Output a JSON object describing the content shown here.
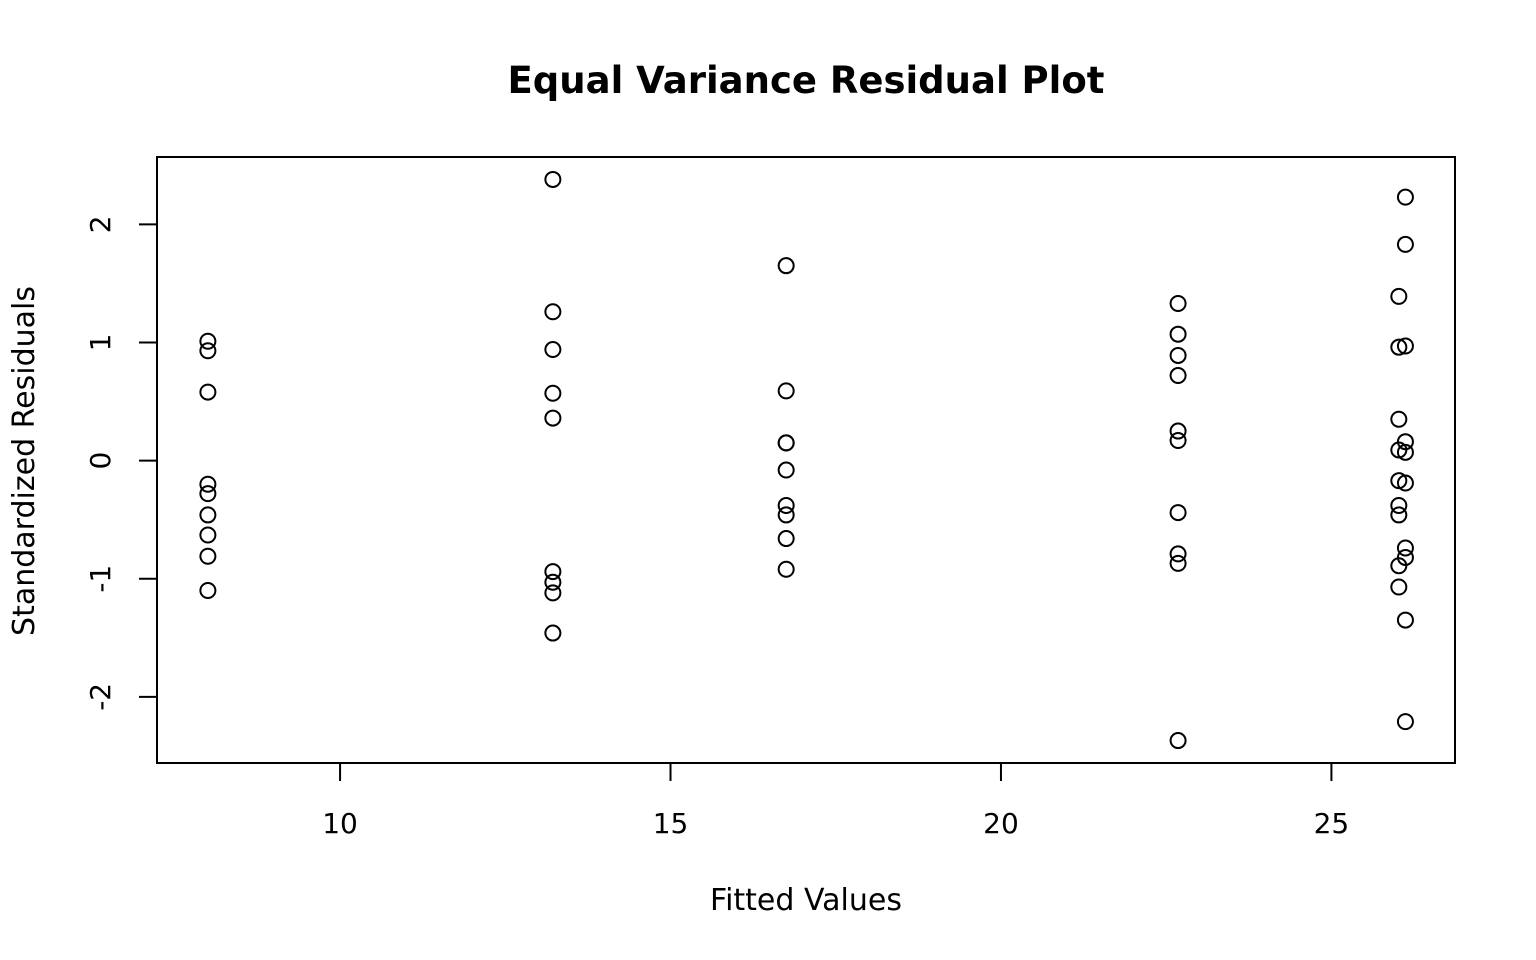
{
  "chart_data": {
    "type": "scatter",
    "title": "Equal Variance Residual Plot",
    "xlabel": "Fitted Values",
    "ylabel": "Standardized Residuals",
    "xlim": [
      7.23,
      26.87
    ],
    "ylim": [
      -2.56,
      2.57
    ],
    "x_ticks": [
      10,
      15,
      20,
      25
    ],
    "y_ticks": [
      -2,
      -1,
      0,
      1,
      2
    ],
    "x_tick_labels": [
      "10",
      "15",
      "20",
      "25"
    ],
    "y_tick_labels": [
      "-2",
      "-1",
      "0",
      "1",
      "2"
    ],
    "grid": false,
    "legend": "none",
    "marker": "open-circle",
    "color": "#000000",
    "points": [
      {
        "x": 8.0,
        "y": 1.01
      },
      {
        "x": 8.0,
        "y": 0.93
      },
      {
        "x": 8.0,
        "y": 0.58
      },
      {
        "x": 8.0,
        "y": -0.2
      },
      {
        "x": 8.0,
        "y": -0.28
      },
      {
        "x": 8.0,
        "y": -0.46
      },
      {
        "x": 8.0,
        "y": -0.63
      },
      {
        "x": 8.0,
        "y": -0.81
      },
      {
        "x": 8.0,
        "y": -1.1
      },
      {
        "x": 13.22,
        "y": 2.38
      },
      {
        "x": 13.22,
        "y": 1.26
      },
      {
        "x": 13.22,
        "y": 0.94
      },
      {
        "x": 13.22,
        "y": 0.57
      },
      {
        "x": 13.22,
        "y": 0.36
      },
      {
        "x": 13.22,
        "y": -0.94
      },
      {
        "x": 13.22,
        "y": -1.03
      },
      {
        "x": 13.22,
        "y": -1.12
      },
      {
        "x": 13.22,
        "y": -1.46
      },
      {
        "x": 16.75,
        "y": 1.65
      },
      {
        "x": 16.75,
        "y": 0.59
      },
      {
        "x": 16.75,
        "y": 0.15
      },
      {
        "x": 16.75,
        "y": 0.15
      },
      {
        "x": 16.75,
        "y": -0.08
      },
      {
        "x": 16.75,
        "y": -0.38
      },
      {
        "x": 16.75,
        "y": -0.46
      },
      {
        "x": 16.75,
        "y": -0.66
      },
      {
        "x": 16.75,
        "y": -0.92
      },
      {
        "x": 22.68,
        "y": 1.33
      },
      {
        "x": 22.68,
        "y": 1.07
      },
      {
        "x": 22.68,
        "y": 0.89
      },
      {
        "x": 22.68,
        "y": 0.72
      },
      {
        "x": 22.68,
        "y": 0.25
      },
      {
        "x": 22.68,
        "y": 0.17
      },
      {
        "x": 22.68,
        "y": -0.44
      },
      {
        "x": 22.68,
        "y": -0.79
      },
      {
        "x": 22.68,
        "y": -0.87
      },
      {
        "x": 22.68,
        "y": -2.37
      },
      {
        "x": 26.02,
        "y": 1.39
      },
      {
        "x": 26.02,
        "y": 0.96
      },
      {
        "x": 26.02,
        "y": 0.35
      },
      {
        "x": 26.02,
        "y": 0.09
      },
      {
        "x": 26.02,
        "y": -0.17
      },
      {
        "x": 26.02,
        "y": -0.38
      },
      {
        "x": 26.02,
        "y": -0.46
      },
      {
        "x": 26.02,
        "y": -0.89
      },
      {
        "x": 26.02,
        "y": -1.07
      },
      {
        "x": 26.12,
        "y": 2.23
      },
      {
        "x": 26.12,
        "y": 1.83
      },
      {
        "x": 26.12,
        "y": 0.97
      },
      {
        "x": 26.12,
        "y": 0.16
      },
      {
        "x": 26.12,
        "y": 0.07
      },
      {
        "x": 26.12,
        "y": -0.19
      },
      {
        "x": 26.12,
        "y": -0.74
      },
      {
        "x": 26.12,
        "y": -0.82
      },
      {
        "x": 26.12,
        "y": -1.35
      },
      {
        "x": 26.12,
        "y": -2.21
      }
    ]
  }
}
